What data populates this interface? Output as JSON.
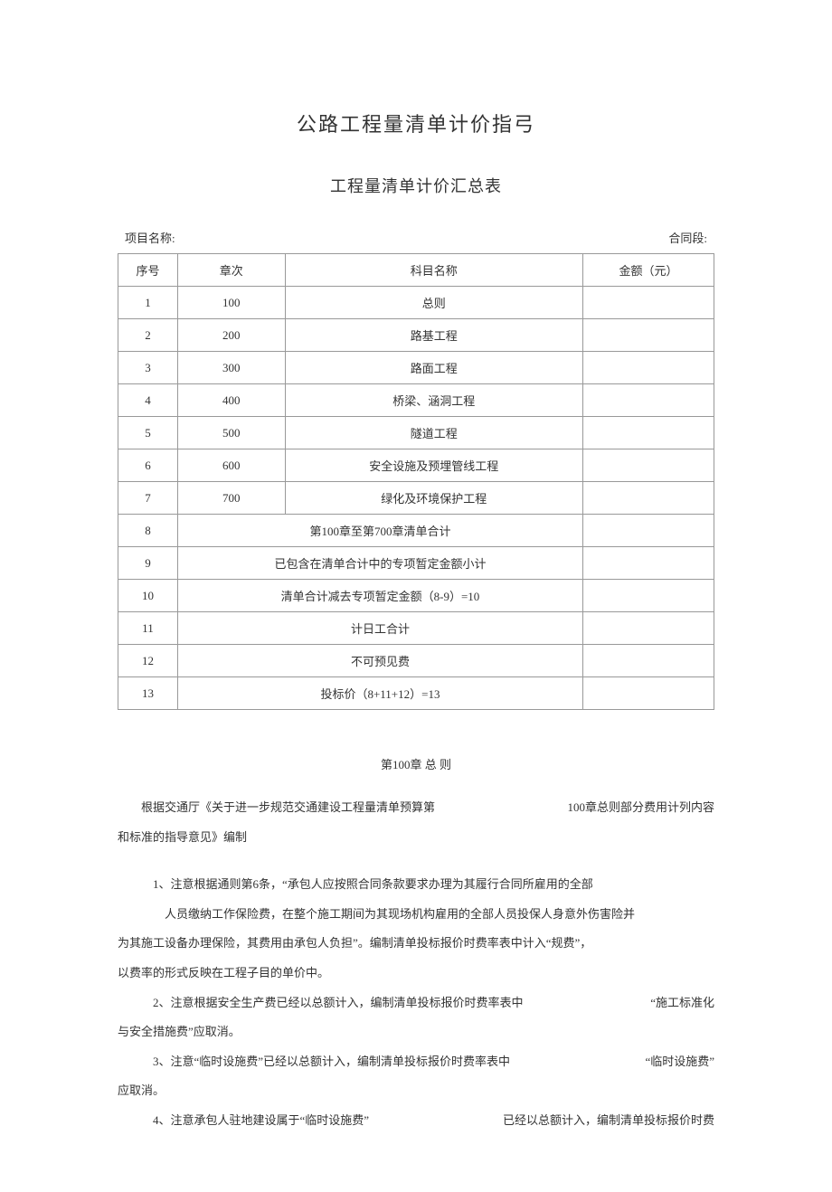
{
  "title_main": "公路工程量清单计价指弓",
  "title_sub": "工程量清单计价汇总表",
  "header": {
    "project_label": "项目名称:",
    "contract_label": "合同段:"
  },
  "table": {
    "columns": [
      "序号",
      "章次",
      "科目名称",
      "金额（元）"
    ],
    "rows": [
      {
        "seq": "1",
        "chapter": "100",
        "name": "总则",
        "amount": "",
        "merged": false
      },
      {
        "seq": "2",
        "chapter": "200",
        "name": "路基工程",
        "amount": "",
        "merged": false
      },
      {
        "seq": "3",
        "chapter": "300",
        "name": "路面工程",
        "amount": "",
        "merged": false
      },
      {
        "seq": "4",
        "chapter": "400",
        "name": "桥梁、涵洞工程",
        "amount": "",
        "merged": false
      },
      {
        "seq": "5",
        "chapter": "500",
        "name": "隧道工程",
        "amount": "",
        "merged": false
      },
      {
        "seq": "6",
        "chapter": "600",
        "name": "安全设施及预埋管线工程",
        "amount": "",
        "merged": false
      },
      {
        "seq": "7",
        "chapter": "700",
        "name": "绿化及环境保护工程",
        "amount": "",
        "merged": false
      },
      {
        "seq": "8",
        "name": "第100章至第700章清单合计",
        "amount": "",
        "merged": true
      },
      {
        "seq": "9",
        "name": "已包含在清单合计中的专项暂定金额小计",
        "amount": "",
        "merged": true
      },
      {
        "seq": "10",
        "name": "清单合计减去专项暂定金额（8-9）=10",
        "amount": "",
        "merged": true
      },
      {
        "seq": "11",
        "name": "计日工合计",
        "amount": "",
        "merged": true
      },
      {
        "seq": "12",
        "name": "不可预见费",
        "amount": "",
        "merged": true
      },
      {
        "seq": "13",
        "name": "投标价（8+11+12）=13",
        "amount": "",
        "merged": true
      }
    ]
  },
  "section": {
    "heading": "第100章  总  则",
    "line1_left": "根据交通厅《关于进一步规范交通建设工程量清单预算第",
    "line1_right": "100章总则部分费用计列内容",
    "line2": "和标准的指导意见》编制",
    "p1_a": "1、注意根据通则第6条，“承包人应按照合同条款要求办理为其履行合同所雇用的全部",
    "p1_b": "人员缴纳工作保险费，在整个施工期间为其现场机构雇用的全部人员投保人身意外伤害险并",
    "p1_c": "为其施工设备办理保险，其费用由承包人负担”。编制清单投标报价时费率表中计入“规费”，",
    "p1_d": "以费率的形式反映在工程子目的单价中。",
    "p2_left": "2、注意根据安全生产费已经以总额计入，编制清单投标报价时费率表中",
    "p2_right": "“施工标准化",
    "p2_b": "与安全措施费”应取消。",
    "p3_left": "3、注意“临时设施费”已经以总额计入，编制清单投标报价时费率表中",
    "p3_right": "“临时设施费”",
    "p3_b": "应取消。",
    "p4_left": "4、注意承包人驻地建设属于“临时设施费”",
    "p4_right": "已经以总额计入，编制清单投标报价时费"
  },
  "style": {
    "border_color": "#999999",
    "text_color": "#333333",
    "bg_color": "#ffffff",
    "body_fontsize": 13,
    "title_main_fontsize": 22,
    "title_sub_fontsize": 18
  }
}
